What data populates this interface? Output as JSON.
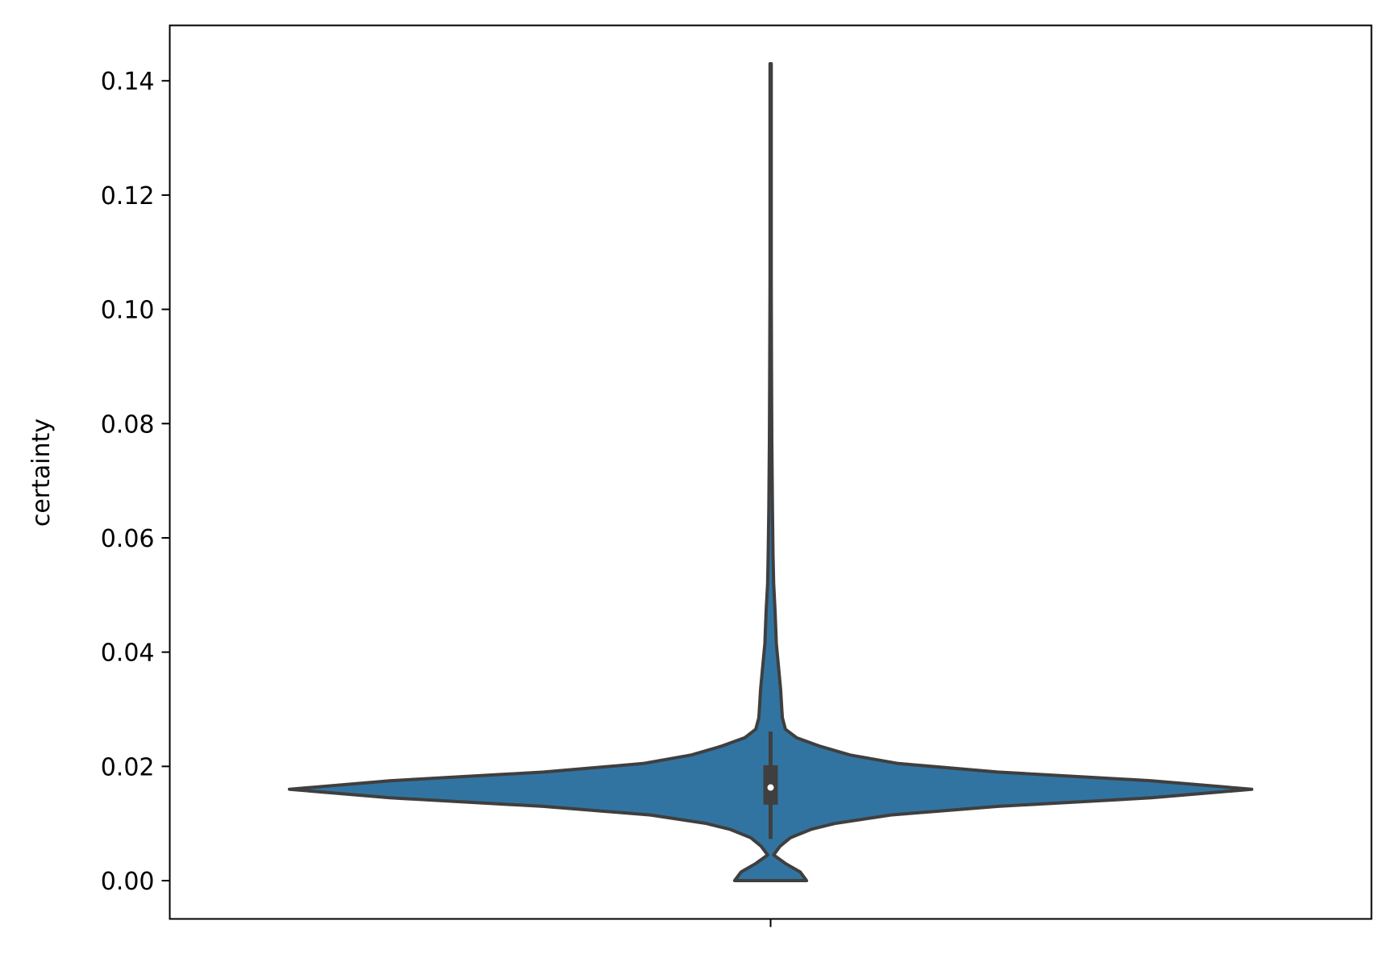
{
  "chart_data": {
    "type": "violin",
    "ylabel": "certainty",
    "xlabel": "",
    "ylim": [
      -0.0067,
      0.1497
    ],
    "yticks": [
      0.0,
      0.02,
      0.04,
      0.06,
      0.08,
      0.1,
      0.12,
      0.14
    ],
    "ytick_labels": [
      "0.00",
      "0.02",
      "0.04",
      "0.06",
      "0.08",
      "0.10",
      "0.12",
      "0.14"
    ],
    "xtick_labels": [
      ""
    ],
    "grid": false,
    "fill_color": "#3274a1",
    "line_color": "#3f3f3f",
    "violin_profile": [
      {
        "y": 0.0,
        "w": 0.119
      },
      {
        "y": 0.0015,
        "w": 0.098
      },
      {
        "y": 0.003,
        "w": 0.049
      },
      {
        "y": 0.0045,
        "w": 0.01
      },
      {
        "y": 0.006,
        "w": 0.031
      },
      {
        "y": 0.0075,
        "w": 0.065
      },
      {
        "y": 0.009,
        "w": 0.135
      },
      {
        "y": 0.01,
        "w": 0.212
      },
      {
        "y": 0.0115,
        "w": 0.397
      },
      {
        "y": 0.013,
        "w": 0.753
      },
      {
        "y": 0.0145,
        "w": 1.259
      },
      {
        "y": 0.016,
        "w": 1.591
      },
      {
        "y": 0.0175,
        "w": 1.256
      },
      {
        "y": 0.019,
        "w": 0.751
      },
      {
        "y": 0.0205,
        "w": 0.422
      },
      {
        "y": 0.022,
        "w": 0.262
      },
      {
        "y": 0.0235,
        "w": 0.165
      },
      {
        "y": 0.025,
        "w": 0.086
      },
      {
        "y": 0.0265,
        "w": 0.049
      },
      {
        "y": 0.0285,
        "w": 0.039
      },
      {
        "y": 0.03,
        "w": 0.037
      },
      {
        "y": 0.0335,
        "w": 0.033
      },
      {
        "y": 0.037,
        "w": 0.027
      },
      {
        "y": 0.0415,
        "w": 0.019
      },
      {
        "y": 0.047,
        "w": 0.015
      },
      {
        "y": 0.052,
        "w": 0.01
      },
      {
        "y": 0.057,
        "w": 0.008
      },
      {
        "y": 0.065,
        "w": 0.006
      },
      {
        "y": 0.077,
        "w": 0.004
      },
      {
        "y": 0.09,
        "w": 0.003
      },
      {
        "y": 0.105,
        "w": 0.002
      },
      {
        "y": 0.12,
        "w": 0.002
      },
      {
        "y": 0.143,
        "w": 0.002
      }
    ],
    "box": {
      "q1": 0.0133,
      "median": 0.0163,
      "q3": 0.0202,
      "whisker_low": 0.0073,
      "whisker_high": 0.0261
    }
  }
}
